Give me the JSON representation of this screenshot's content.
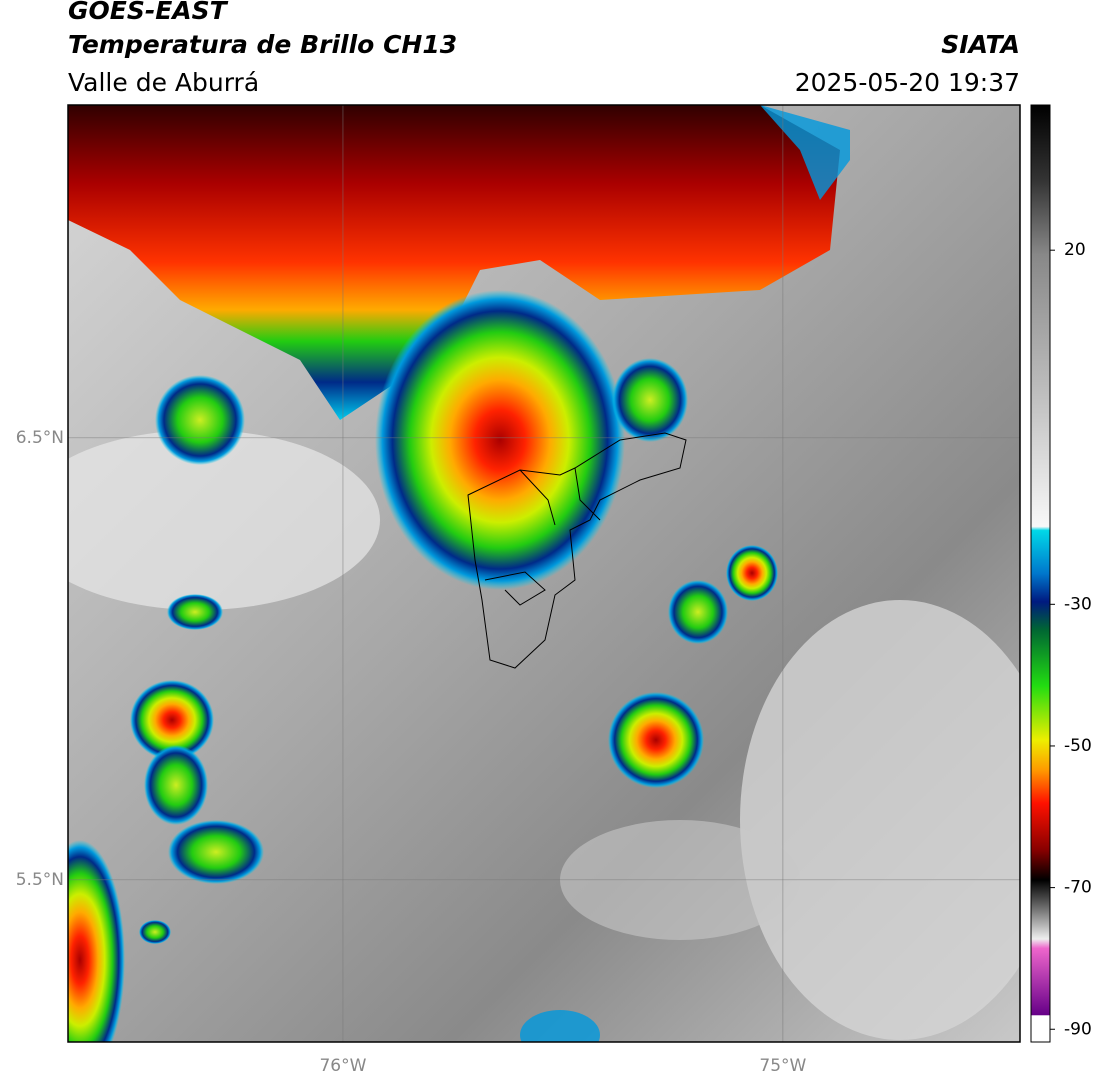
{
  "chart_data": {
    "type": "map",
    "title": "GOES-EAST",
    "subtitle": "Temperatura de Brillo CH13",
    "source": "SIATA",
    "region": "Valle de Aburrá",
    "timestamp": "2025-05-20 19:37",
    "xlim": [
      -76.625,
      -74.461
    ],
    "ylim": [
      5.133,
      7.253
    ],
    "xticks": [
      {
        "value": -76,
        "label": "76°W"
      },
      {
        "value": -75,
        "label": "75°W"
      }
    ],
    "yticks": [
      {
        "value": 6.5,
        "label": "6.5°N"
      },
      {
        "value": 5.5,
        "label": "5.5°N"
      }
    ],
    "grid": true,
    "colorbar_lim": [
      -91.8,
      40.5
    ],
    "colorbar_ticks": [
      20,
      -30,
      -50,
      -70,
      -90
    ]
  }
}
